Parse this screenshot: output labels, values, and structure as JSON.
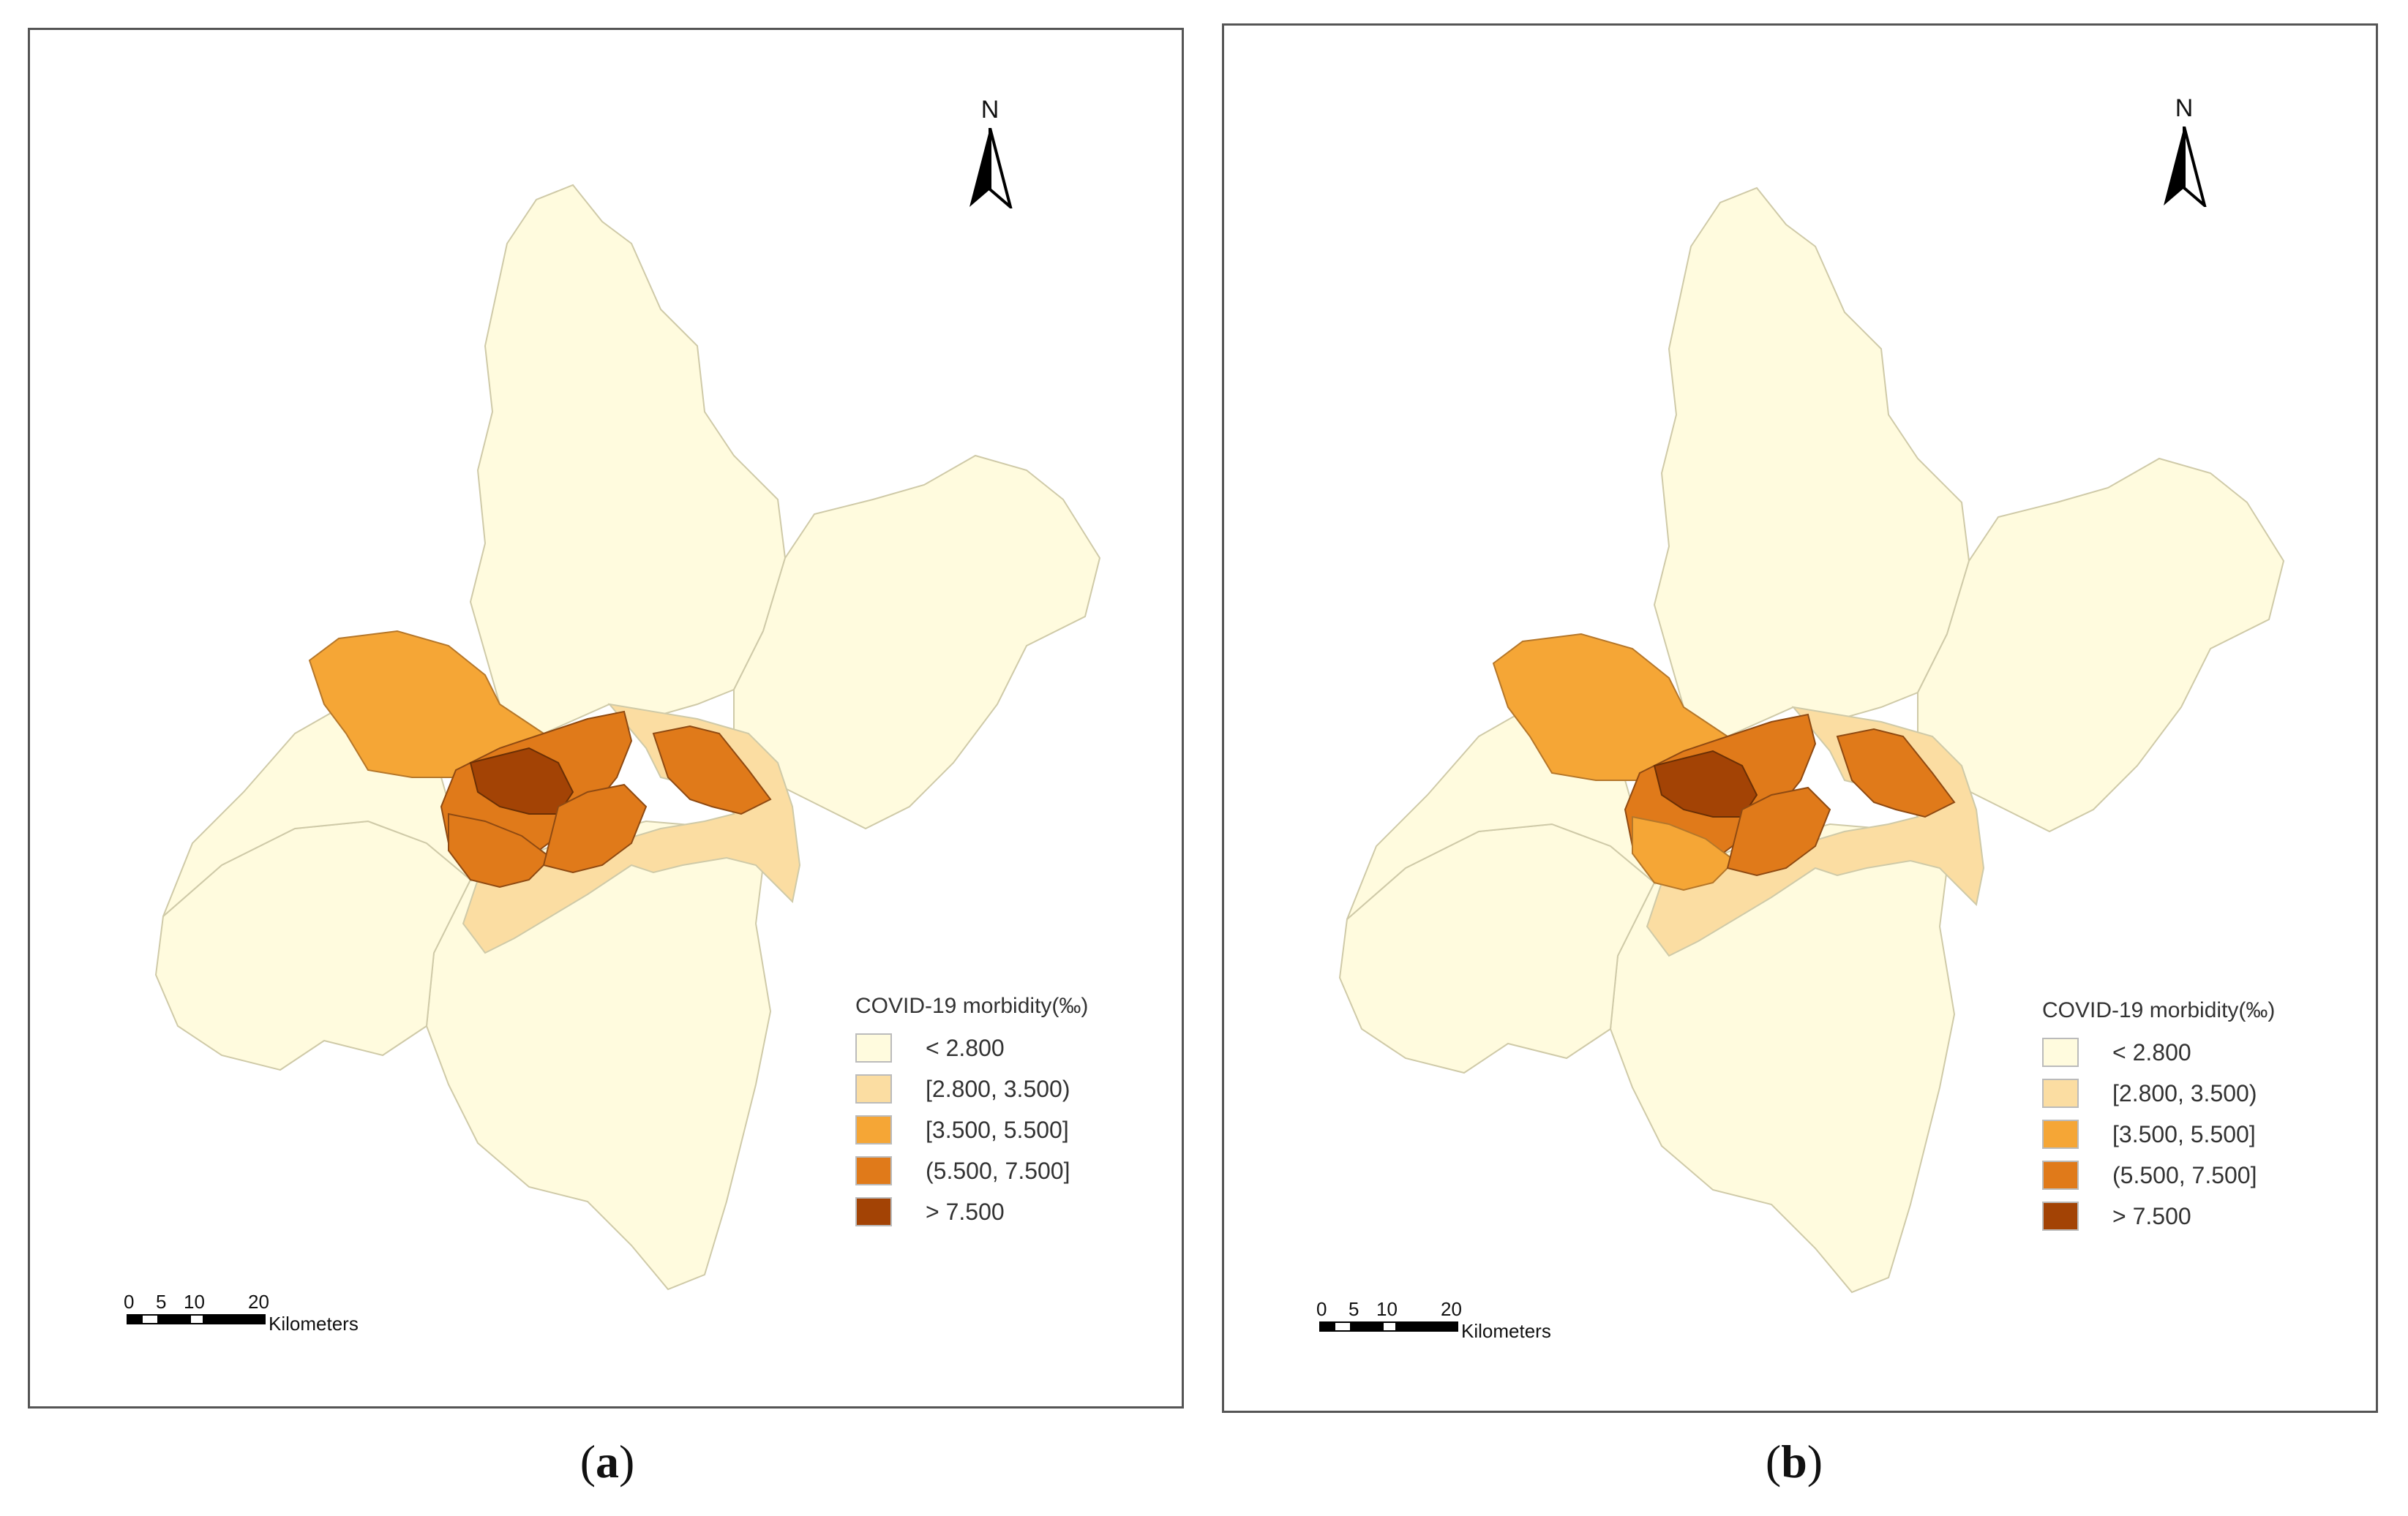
{
  "legend": {
    "title": "COVID-19 morbidity(‰)",
    "items": [
      {
        "label": "< 2.800",
        "color": "#FFFBDE"
      },
      {
        "label": "[2.800, 3.500)",
        "color": "#FBDDA2"
      },
      {
        "label": "[3.500, 5.500]",
        "color": "#F5A636"
      },
      {
        "label": "(5.500, 7.500]",
        "color": "#E07A1A"
      },
      {
        "label": "> 7.500",
        "color": "#A34305"
      }
    ]
  },
  "north_label": "N",
  "scale": {
    "ticks": [
      "0",
      "5",
      "10",
      "20"
    ],
    "unit": "Kilometers"
  },
  "panels": [
    {
      "caption_letter": "a",
      "district_classes": {
        "north": 0,
        "northeast": 0,
        "west": 0,
        "southwest": 0,
        "south": 0,
        "east_river_band": 1,
        "northwest_lobe": 2,
        "central_ring": 3,
        "core": 4,
        "east_spur": 3,
        "hanyang": 3,
        "wuchang": 3
      }
    },
    {
      "caption_letter": "b",
      "district_classes": {
        "north": 0,
        "northeast": 0,
        "west": 0,
        "southwest": 0,
        "south": 0,
        "east_river_band": 1,
        "northwest_lobe": 2,
        "central_ring": 3,
        "core": 4,
        "east_spur": 3,
        "hanyang": 2,
        "wuchang": 3
      }
    }
  ]
}
